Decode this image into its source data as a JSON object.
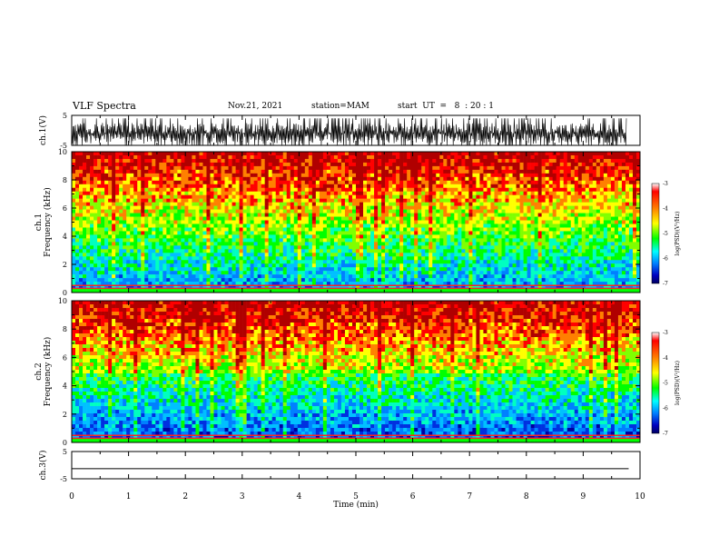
{
  "header": {
    "title": "VLF Spectra",
    "date": "Nov.21, 2021",
    "station": "station=MAM",
    "start": "start  UT  =   8  : 20 : 1"
  },
  "colorbar": {
    "label": "log(PSD)(V²/Hz)",
    "ticks": [
      "-3",
      "-4",
      "-5",
      "-6",
      "-7"
    ],
    "colors": [
      "#ff0000",
      "#ff8000",
      "#ffff00",
      "#00ff00",
      "#00ffff",
      "#0080ff",
      "#0000c0",
      "#000060"
    ]
  },
  "chart_data": [
    {
      "type": "line",
      "panel": "ch.1 waveform",
      "ylabel": "ch.1(V)",
      "ylim": [
        -5,
        5
      ],
      "yticks": [
        "5",
        "-5"
      ],
      "description": "dense impulsive waveform filling the range"
    },
    {
      "type": "heatmap",
      "panel": "ch.1 spectrogram",
      "ylabel": "ch.1\nFrequency (kHz)",
      "ylim": [
        0,
        10
      ],
      "yticks": [
        "10",
        "8",
        "6",
        "4",
        "2",
        "0"
      ],
      "xlim": [
        0,
        10
      ]
    },
    {
      "type": "heatmap",
      "panel": "ch.2 spectrogram",
      "ylabel": "ch.2\nFrequency (kHz)",
      "ylim": [
        0,
        10
      ],
      "yticks": [
        "10",
        "8",
        "6",
        "4",
        "2",
        "0"
      ],
      "xlim": [
        0,
        10
      ]
    },
    {
      "type": "line",
      "panel": "ch.3 waveform",
      "ylabel": "ch.3(V)",
      "ylim": [
        -5,
        5
      ],
      "yticks": [
        "5",
        "-5"
      ],
      "x": [
        0,
        9.8
      ],
      "y": [
        -1.3,
        -1.3
      ]
    }
  ],
  "xaxis": {
    "label": "Time (min)",
    "ticks": [
      "0",
      "1",
      "2",
      "3",
      "4",
      "5",
      "6",
      "7",
      "8",
      "9",
      "10"
    ],
    "xlim": [
      0,
      10
    ]
  }
}
